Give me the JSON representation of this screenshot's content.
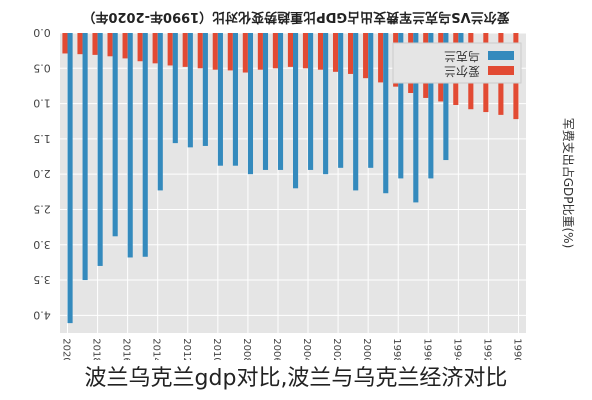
{
  "caption": "波兰乌克兰gdp对比,波兰与乌克兰经济对比",
  "chart_data": {
    "type": "bar",
    "orientation": "rotated-180",
    "title": "爱尔兰VS乌克兰军费支出占GDP比重趋势变化对比（1990年-2020年）",
    "ylabel": "军费支出占GDP比重(%)",
    "xlabel": "",
    "ylim": [
      0,
      4.25
    ],
    "yticks": [
      0.0,
      0.5,
      1.0,
      1.5,
      2.0,
      2.5,
      3.0,
      3.5,
      4.0
    ],
    "grid": true,
    "legend_position": "top-right",
    "categories": [
      "1990",
      "1991",
      "1992",
      "1993",
      "1994",
      "1995",
      "1996",
      "1997",
      "1998",
      "1999",
      "2000",
      "2001",
      "2002",
      "2003",
      "2004",
      "2005",
      "2006",
      "2007",
      "2008",
      "2009",
      "2010",
      "2011",
      "2012",
      "2013",
      "2014",
      "2015",
      "2016",
      "2017",
      "2018",
      "2019",
      "2020"
    ],
    "tick_labels": [
      "1990",
      "1992",
      "1994",
      "1996",
      "1998",
      "2000",
      "2002",
      "2004",
      "2006",
      "2008",
      "2010",
      "2012",
      "2014",
      "2016",
      "2018",
      "2020"
    ],
    "series": [
      {
        "name": "爱尔兰",
        "color": "#e24a33",
        "values": [
          1.22,
          1.16,
          1.12,
          1.08,
          1.02,
          0.97,
          0.92,
          0.85,
          0.76,
          0.7,
          0.64,
          0.58,
          0.55,
          0.52,
          0.5,
          0.48,
          0.5,
          0.52,
          0.56,
          0.53,
          0.52,
          0.5,
          0.48,
          0.46,
          0.43,
          0.4,
          0.36,
          0.33,
          0.31,
          0.3,
          0.29
        ]
      },
      {
        "name": "乌克兰",
        "color": "#348abd",
        "values": [
          null,
          null,
          null,
          null,
          0.34,
          1.8,
          2.06,
          2.4,
          2.06,
          2.27,
          1.91,
          2.23,
          1.91,
          2.0,
          1.94,
          2.2,
          1.94,
          1.94,
          2.0,
          1.88,
          1.88,
          1.6,
          1.62,
          1.56,
          2.23,
          3.17,
          3.18,
          2.88,
          3.3,
          3.5,
          4.11
        ]
      }
    ]
  }
}
